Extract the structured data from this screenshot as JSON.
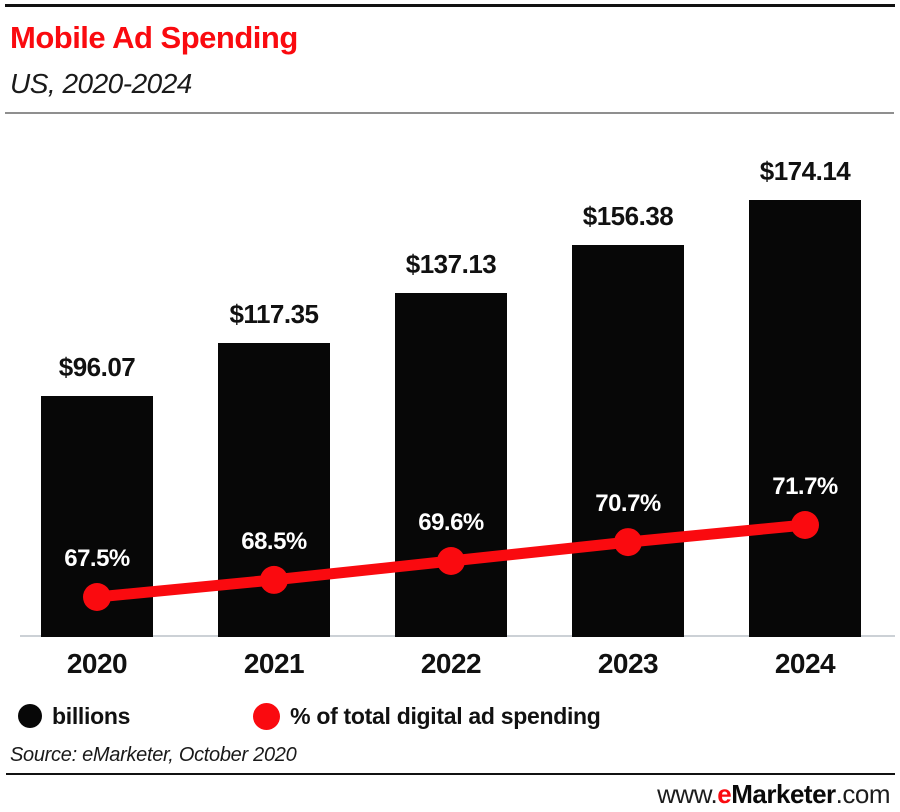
{
  "header": {
    "title": "Mobile Ad Spending",
    "subtitle": "US, 2020-2024"
  },
  "chart_data": {
    "type": "bar",
    "title": "Mobile Ad Spending",
    "subtitle": "US, 2020-2024",
    "categories": [
      "2020",
      "2021",
      "2022",
      "2023",
      "2024"
    ],
    "series": [
      {
        "name": "billions",
        "type": "bar",
        "color": "#070707",
        "values": [
          96.07,
          117.35,
          137.13,
          156.38,
          174.14
        ],
        "labels": [
          "$96.07",
          "$117.35",
          "$137.13",
          "$156.38",
          "$174.14"
        ]
      },
      {
        "name": "% of total digital ad spending",
        "type": "line",
        "color": "#fa0a0f",
        "values": [
          67.5,
          68.5,
          69.6,
          70.7,
          71.7
        ],
        "labels": [
          "67.5%",
          "68.5%",
          "69.6%",
          "70.7%",
          "71.7%"
        ]
      }
    ],
    "xlabel": "",
    "ylabel": "",
    "grid": false,
    "value_axis_hidden": true,
    "legend_position": "bottom"
  },
  "legend": {
    "items": [
      {
        "label": "billions",
        "color": "#070707"
      },
      {
        "label": "% of total digital ad spending",
        "color": "#fa0a0f"
      }
    ]
  },
  "source_note": "Source: eMarketer, October 2020",
  "footer": {
    "prefix": "www.",
    "brand_e": "e",
    "brand_rest": "Marketer",
    "suffix": ".com"
  },
  "colors": {
    "accent_red": "#fa0a0f",
    "bar_black": "#070707",
    "divider_gray": "#8f8f8f"
  }
}
